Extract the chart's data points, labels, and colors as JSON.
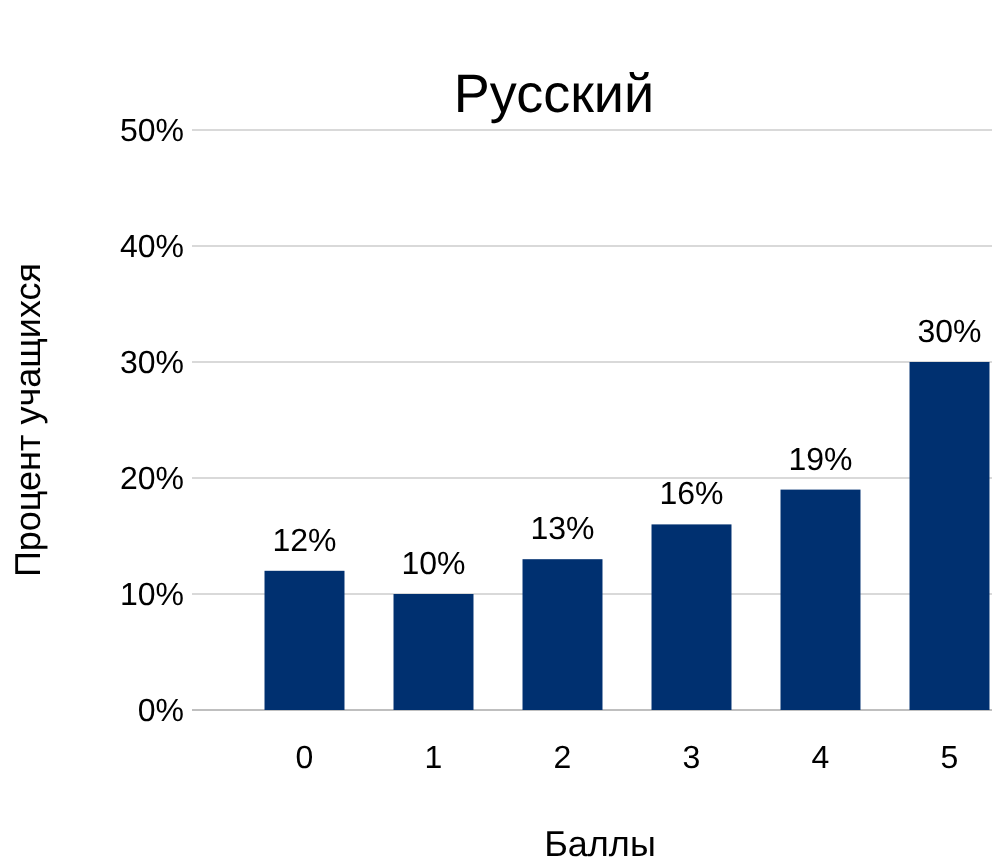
{
  "chart_data": {
    "type": "bar",
    "title": "Русский",
    "xlabel": "Баллы",
    "ylabel": "Процент учащихся",
    "categories": [
      "0",
      "1",
      "2",
      "3",
      "4",
      "5"
    ],
    "values": [
      12,
      10,
      13,
      16,
      19,
      30
    ],
    "color": "#003070",
    "ylim": [
      0,
      50
    ],
    "yticks": [
      {
        "value": 0,
        "label": "0%"
      },
      {
        "value": 10,
        "label": "10%"
      },
      {
        "value": 20,
        "label": "20%"
      },
      {
        "value": 30,
        "label": "30%"
      },
      {
        "value": 40,
        "label": "40%"
      },
      {
        "value": 50,
        "label": "50%"
      }
    ],
    "value_labels": [
      "12%",
      "10%",
      "13%",
      "16%",
      "19%",
      "30%"
    ],
    "grid": "y"
  }
}
